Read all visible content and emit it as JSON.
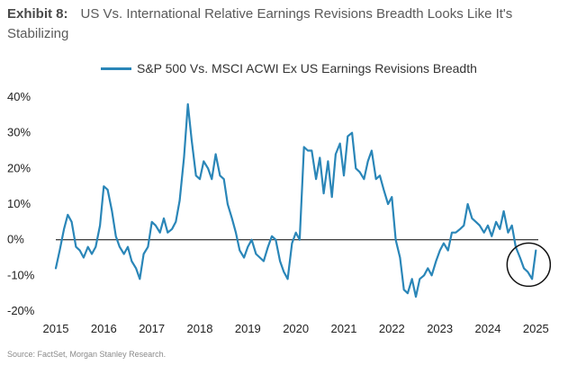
{
  "header": {
    "exhibit": "Exhibit 8:",
    "title": "US Vs. International Relative Earnings Revisions Breadth Looks Like It's Stabilizing"
  },
  "source": "Source: FactSet, Morgan Stanley Research.",
  "colors": {
    "line": "#2a86b8",
    "zero_line": "#222222",
    "circle": "#111111"
  },
  "chart_data": {
    "type": "line",
    "title": "",
    "xlabel": "",
    "ylabel": "",
    "xlim": [
      2015.0,
      2025.05
    ],
    "ylim": [
      -20,
      40
    ],
    "x_ticks": [
      2015,
      2016,
      2017,
      2018,
      2019,
      2020,
      2021,
      2022,
      2023,
      2024,
      2025
    ],
    "x_tick_labels": [
      "2015",
      "2016",
      "2017",
      "2018",
      "2019",
      "2020",
      "2021",
      "2022",
      "2023",
      "2024",
      "2025"
    ],
    "y_ticks": [
      40,
      30,
      20,
      10,
      0,
      -10,
      -20
    ],
    "y_tick_labels": [
      "40%",
      "30%",
      "20%",
      "10%",
      "0%",
      "-10%",
      "-20%"
    ],
    "reference_line": 0,
    "grid": false,
    "legend": "top",
    "annotation": {
      "type": "circle",
      "center": [
        2024.85,
        -7
      ],
      "label": ""
    },
    "series": [
      {
        "name": "S&P 500 Vs. MSCI ACWI Ex US Earnings Revisions Breadth",
        "x": [
          2015.0,
          2015.08,
          2015.17,
          2015.25,
          2015.33,
          2015.42,
          2015.5,
          2015.58,
          2015.67,
          2015.75,
          2015.83,
          2015.92,
          2016.0,
          2016.08,
          2016.17,
          2016.25,
          2016.33,
          2016.42,
          2016.5,
          2016.58,
          2016.67,
          2016.75,
          2016.83,
          2016.92,
          2017.0,
          2017.08,
          2017.17,
          2017.25,
          2017.33,
          2017.42,
          2017.5,
          2017.58,
          2017.67,
          2017.75,
          2017.83,
          2017.92,
          2018.0,
          2018.08,
          2018.17,
          2018.25,
          2018.33,
          2018.42,
          2018.5,
          2018.58,
          2018.67,
          2018.75,
          2018.83,
          2018.92,
          2019.0,
          2019.08,
          2019.17,
          2019.25,
          2019.33,
          2019.42,
          2019.5,
          2019.58,
          2019.67,
          2019.75,
          2019.83,
          2019.92,
          2020.0,
          2020.08,
          2020.17,
          2020.25,
          2020.33,
          2020.42,
          2020.5,
          2020.58,
          2020.67,
          2020.75,
          2020.83,
          2020.92,
          2021.0,
          2021.08,
          2021.17,
          2021.25,
          2021.33,
          2021.42,
          2021.5,
          2021.58,
          2021.67,
          2021.75,
          2021.83,
          2021.92,
          2022.0,
          2022.08,
          2022.17,
          2022.25,
          2022.33,
          2022.42,
          2022.5,
          2022.58,
          2022.67,
          2022.75,
          2022.83,
          2022.92,
          2023.0,
          2023.08,
          2023.17,
          2023.25,
          2023.33,
          2023.42,
          2023.5,
          2023.58,
          2023.67,
          2023.75,
          2023.83,
          2023.92,
          2024.0,
          2024.08,
          2024.17,
          2024.25,
          2024.33,
          2024.42,
          2024.5,
          2024.58,
          2024.67,
          2024.75,
          2024.83,
          2024.92,
          2025.0
        ],
        "values": [
          -8,
          -3,
          3,
          7,
          5,
          -2,
          -3,
          -5,
          -2,
          -4,
          -2,
          4,
          15,
          14,
          8,
          1,
          -2,
          -4,
          -2,
          -6,
          -8,
          -11,
          -4,
          -2,
          5,
          4,
          2,
          6,
          2,
          3,
          5,
          11,
          23,
          38,
          28,
          18,
          17,
          22,
          20,
          17,
          24,
          18,
          17,
          10,
          6,
          2,
          -3,
          -5,
          -2,
          0,
          -4,
          -5,
          -6,
          -2,
          1,
          0,
          -6,
          -9,
          -11,
          -1,
          2,
          0,
          26,
          25,
          25,
          17,
          23,
          13,
          22,
          12,
          24,
          27,
          18,
          29,
          30,
          20,
          19,
          17,
          22,
          25,
          17,
          18,
          14,
          10,
          12,
          0,
          -5,
          -14,
          -15,
          -11,
          -16,
          -11,
          -10,
          -8,
          -10,
          -6,
          -3,
          -1,
          -3,
          2,
          2,
          3,
          4,
          10,
          6,
          5,
          4,
          2,
          4,
          1,
          5,
          3,
          8,
          2,
          4,
          -2,
          -5,
          -8,
          -9,
          -11,
          -3
        ]
      }
    ]
  }
}
